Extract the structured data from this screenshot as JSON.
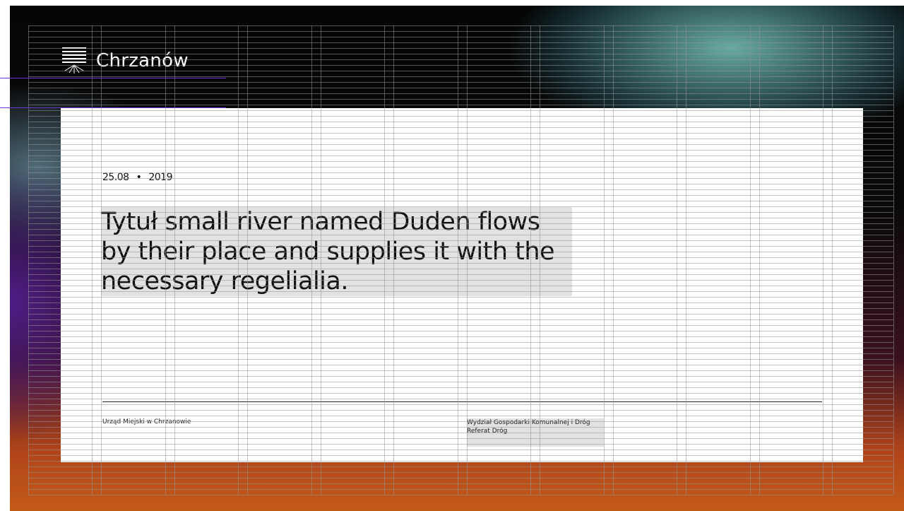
{
  "header": {
    "logo_text": "Chrzanów"
  },
  "article": {
    "date_day": "25.08",
    "date_year": "2019",
    "title": "Tytuł small river named Duden flows by their place and supplies it with the necessary regelialia."
  },
  "footer": {
    "left": "Urząd Miejski w Chrzanowie",
    "right": [
      "Wydział Gospodarki Komunalnej i Dróg",
      "Referat Dróg"
    ]
  }
}
